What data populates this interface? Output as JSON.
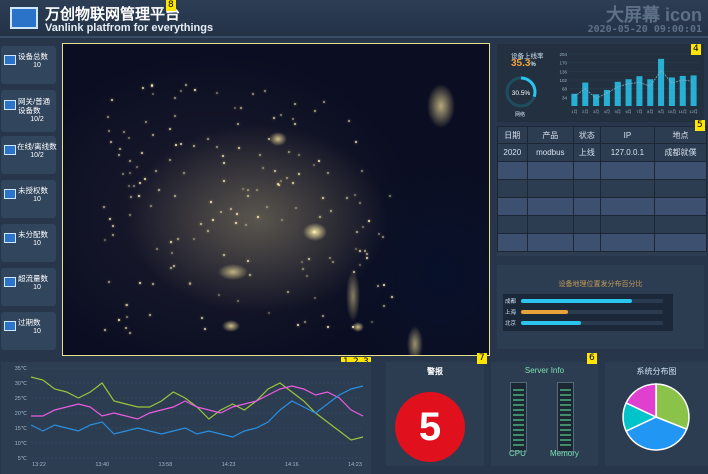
{
  "header": {
    "title": "万创物联网管理平台",
    "subtitle": "Vanlink platfrom  for  everythings",
    "brand": "大屏幕 icon",
    "datetime": "2020-05-20 09:00:01"
  },
  "tags": {
    "t8": "8",
    "t4": "4",
    "t5": "5",
    "t1": "1",
    "t2": "2",
    "t3": "3",
    "t7": "7",
    "t6": "6"
  },
  "sidebar": {
    "items": [
      {
        "label": "设备总数",
        "value": "10"
      },
      {
        "label": "网关/普通设备数",
        "value": "10/2"
      },
      {
        "label": "在线/离线数",
        "value": "10/2"
      },
      {
        "label": "未授权数",
        "value": "10"
      },
      {
        "label": "未分配数",
        "value": "10"
      },
      {
        "label": "超流量数",
        "value": "10"
      },
      {
        "label": "过期数",
        "value": "10"
      }
    ]
  },
  "kpi": {
    "title": "设备上线率",
    "value": "35.3",
    "unit": "%",
    "gauge_value": "30.5%",
    "gauge_label": "网络",
    "gauge_fraction": 0.305
  },
  "table": {
    "headers": [
      "日期",
      "产品",
      "状态",
      "IP",
      "地点"
    ],
    "rows": [
      [
        "2020",
        "modbus",
        "上线",
        "127.0.0.1",
        "成都就僕"
      ],
      [
        "",
        "",
        "",
        "",
        ""
      ],
      [
        "",
        "",
        "",
        "",
        ""
      ],
      [
        "",
        "",
        "",
        "",
        ""
      ],
      [
        "",
        "",
        "",
        "",
        ""
      ],
      [
        "",
        "",
        "",
        "",
        ""
      ]
    ]
  },
  "geo": {
    "title": "设备地理位置发分布百分比",
    "rows": [
      {
        "label": "成都",
        "fraction": 0.78,
        "color": "#29c5ee"
      },
      {
        "label": "上海",
        "fraction": 0.33,
        "color": "#e8a23b"
      },
      {
        "label": "北京",
        "fraction": 0.42,
        "color": "#29c5ee"
      }
    ]
  },
  "alarm": {
    "title": "警报",
    "count": "5",
    "color": "#e0101c"
  },
  "server": {
    "title": "Server Info",
    "cpu_label": "CPU",
    "memory_label": "Memory"
  },
  "pie": {
    "title": "系统分布图"
  },
  "chart_data": [
    {
      "type": "bar",
      "title": "",
      "categories": [
        "1月",
        "2月",
        "3月",
        "4月",
        "5月",
        "6月",
        "7月",
        "8月",
        "9月",
        "10月",
        "11月",
        "12月"
      ],
      "values": [
        48,
        92,
        46,
        63,
        95,
        105,
        117,
        105,
        185,
        112,
        118,
        120
      ],
      "line_values": [
        38,
        68,
        30,
        50,
        75,
        88,
        92,
        78,
        140,
        90,
        102,
        96
      ],
      "ylim": [
        0,
        204
      ],
      "yticks": [
        "204",
        "170",
        "136",
        "102",
        "68",
        "34"
      ]
    },
    {
      "type": "line",
      "title": "",
      "x_ticks": [
        "13:22",
        "13:40",
        "13:58",
        "14:23",
        "14:16",
        "14:23"
      ],
      "y_ticks": [
        "35℃",
        "30℃",
        "25℃",
        "20℃",
        "15℃",
        "10℃",
        "5℃"
      ],
      "ylim": [
        5,
        35
      ],
      "series": [
        {
          "color": "#9bc43b",
          "values": [
            32,
            31,
            28,
            27,
            25,
            27,
            30,
            24,
            23,
            22,
            22,
            24,
            27,
            25,
            22,
            18,
            21,
            23,
            21,
            24,
            28,
            30,
            27,
            24,
            20,
            17,
            14,
            11,
            12
          ]
        },
        {
          "color": "#ea5ce0",
          "values": [
            19,
            19,
            21,
            22,
            23,
            22,
            19,
            20,
            19,
            18,
            20,
            21,
            22,
            24,
            22,
            21,
            20,
            22,
            23,
            24,
            26,
            28,
            29,
            28,
            26,
            27,
            25,
            21,
            19
          ]
        },
        {
          "color": "#2a8fe0",
          "values": [
            16,
            14,
            16,
            15,
            14,
            16,
            17,
            13,
            14,
            15,
            14,
            13,
            14,
            15,
            13,
            14,
            13,
            12,
            14,
            15,
            17,
            21,
            24,
            22,
            20,
            23,
            26,
            28,
            29
          ]
        }
      ]
    },
    {
      "type": "pie",
      "title": "",
      "slices": [
        {
          "value": 31,
          "color": "#8bc34a"
        },
        {
          "value": 37,
          "color": "#2196f3"
        },
        {
          "value": 14,
          "color": "#00c4c9"
        },
        {
          "value": 18,
          "color": "#e040d0"
        }
      ]
    }
  ],
  "colors": {
    "accent": "#29c5ee",
    "tag": "#ffe600",
    "panel": "#2c3d52",
    "background": "#27364a"
  }
}
